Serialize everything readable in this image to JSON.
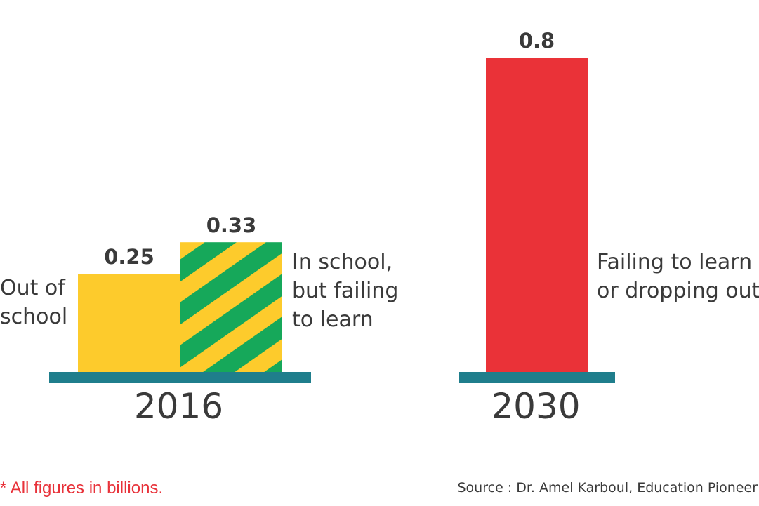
{
  "chart_data": {
    "type": "bar",
    "groups": [
      {
        "category": "2016",
        "bars": [
          {
            "label": [
              "Out of",
              "school"
            ],
            "value": 0.25,
            "value_label": "0.25",
            "color": "#fdcb2c"
          },
          {
            "label": [
              "In school,",
              "but failing",
              "to learn"
            ],
            "value": 0.33,
            "value_label": "0.33",
            "color": "#fdcb2c",
            "stripe_color": "#16a85a",
            "pattern": "diagonal-stripes"
          }
        ]
      },
      {
        "category": "2030",
        "bars": [
          {
            "label": [
              "Failing to learn",
              "or dropping out"
            ],
            "value": 0.8,
            "value_label": "0.8",
            "color": "#ea3238"
          }
        ]
      }
    ],
    "baseline_color": "#1f7e8c",
    "grid": false,
    "legend": "none"
  },
  "footnote": "* All figures in billions.",
  "source": "Source : Dr. Amel Karboul, Education Pioneer"
}
